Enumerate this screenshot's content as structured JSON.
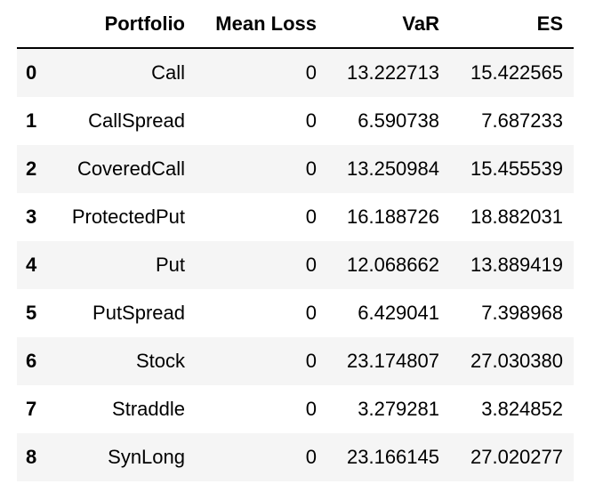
{
  "table": {
    "columns": [
      "",
      "Portfolio",
      "Mean Loss",
      "VaR",
      "ES"
    ],
    "rows": [
      {
        "index": "0",
        "portfolio": "Call",
        "mean_loss": "0",
        "var": "13.222713",
        "es": "15.422565"
      },
      {
        "index": "1",
        "portfolio": "CallSpread",
        "mean_loss": "0",
        "var": "6.590738",
        "es": "7.687233"
      },
      {
        "index": "2",
        "portfolio": "CoveredCall",
        "mean_loss": "0",
        "var": "13.250984",
        "es": "15.455539"
      },
      {
        "index": "3",
        "portfolio": "ProtectedPut",
        "mean_loss": "0",
        "var": "16.188726",
        "es": "18.882031"
      },
      {
        "index": "4",
        "portfolio": "Put",
        "mean_loss": "0",
        "var": "12.068662",
        "es": "13.889419"
      },
      {
        "index": "5",
        "portfolio": "PutSpread",
        "mean_loss": "0",
        "var": "6.429041",
        "es": "7.398968"
      },
      {
        "index": "6",
        "portfolio": "Stock",
        "mean_loss": "0",
        "var": "23.174807",
        "es": "27.030380"
      },
      {
        "index": "7",
        "portfolio": "Straddle",
        "mean_loss": "0",
        "var": "3.279281",
        "es": "3.824852"
      },
      {
        "index": "8",
        "portfolio": "SynLong",
        "mean_loss": "0",
        "var": "23.166145",
        "es": "27.020277"
      }
    ]
  }
}
